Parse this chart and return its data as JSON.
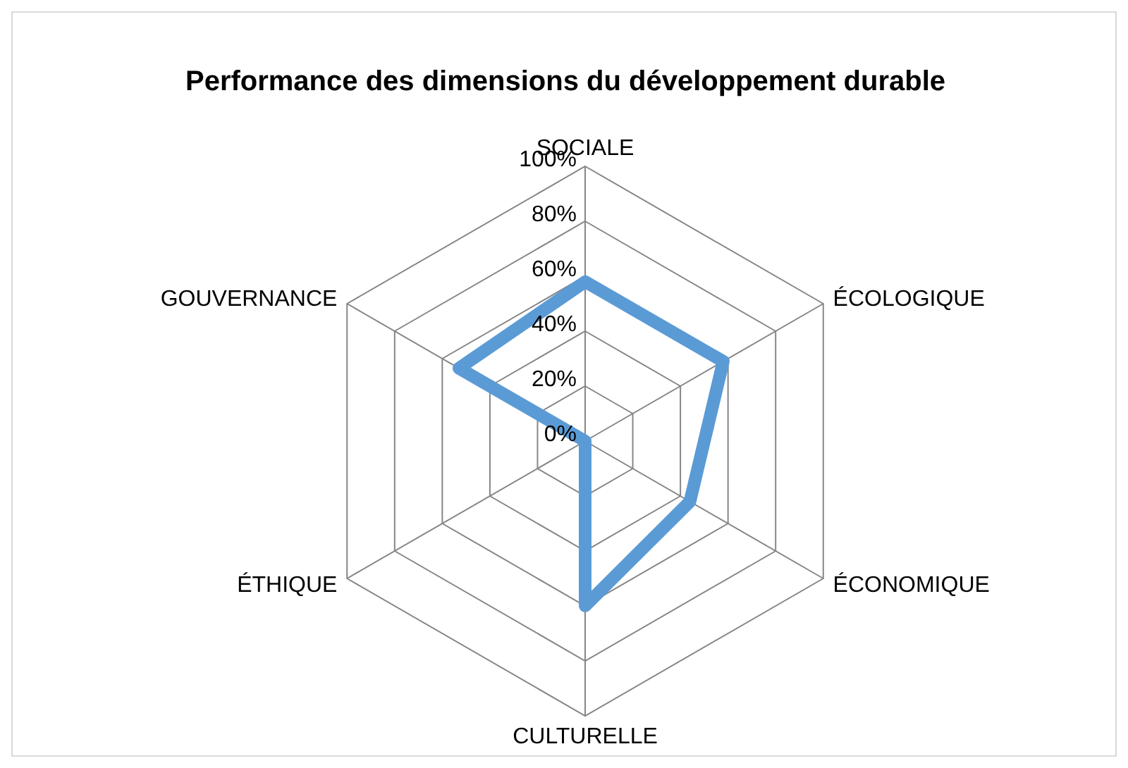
{
  "chart_data": {
    "type": "radar",
    "title": "Performance des dimensions du développement durable",
    "categories": [
      "SOCIALE",
      "ÉCOLOGIQUE",
      "ÉCONOMIQUE",
      "CULTURELLE",
      "ÉTHIQUE",
      "GOUVERNANCE"
    ],
    "series": [
      {
        "color": "#5b9bd5",
        "values": [
          58,
          58,
          44,
          60,
          0,
          53
        ]
      }
    ],
    "ylim": [
      0,
      100
    ],
    "yticks": [
      {
        "value": 0,
        "label": "0%"
      },
      {
        "value": 20,
        "label": "20%"
      },
      {
        "value": 40,
        "label": "40%"
      },
      {
        "value": 60,
        "label": "60%"
      },
      {
        "value": 80,
        "label": "80%"
      },
      {
        "value": 100,
        "label": "100%"
      }
    ],
    "grid": true,
    "legend": false,
    "marker": "none",
    "line_style": "solid"
  }
}
